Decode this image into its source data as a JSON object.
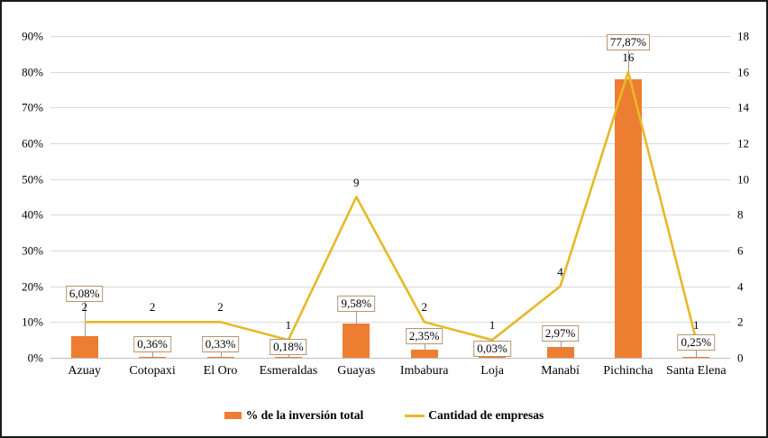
{
  "frame": {
    "background": "#ffffff",
    "border_color": "#1b1b1b"
  },
  "chart_data": {
    "type": "combo",
    "categories": [
      "Azuay",
      "Cotopaxi",
      "El Oro",
      "Esmeraldas",
      "Guayas",
      "Imbabura",
      "Loja",
      "Manabí",
      "Pichincha",
      "Santa Elena"
    ],
    "series": [
      {
        "name": "% de la inversión total",
        "type": "bar",
        "axis": "left",
        "color": "#ED7D31",
        "values": [
          6.08,
          0.36,
          0.33,
          0.18,
          9.58,
          2.35,
          0.03,
          2.97,
          77.87,
          0.25
        ],
        "data_labels": [
          "6,08%",
          "0,36%",
          "0,33%",
          "0,18%",
          "9,58%",
          "2,35%",
          "0,03%",
          "2,97%",
          "77,87%",
          "0,25%"
        ]
      },
      {
        "name": "Cantidad de empresas",
        "type": "line",
        "axis": "right",
        "color": "#E6B928",
        "values": [
          2,
          2,
          2,
          1,
          9,
          2,
          1,
          4,
          16,
          1
        ],
        "data_labels": [
          "2",
          "2",
          "2",
          "1",
          "9",
          "2",
          "1",
          "4",
          "16",
          "1"
        ]
      }
    ],
    "left_axis": {
      "min": 0,
      "max": 90,
      "tick_labels": [
        "0%",
        "10%",
        "20%",
        "30%",
        "40%",
        "50%",
        "60%",
        "70%",
        "80%",
        "90%"
      ]
    },
    "right_axis": {
      "min": 0,
      "max": 18,
      "tick_labels": [
        "0",
        "2",
        "4",
        "6",
        "8",
        "10",
        "12",
        "14",
        "16",
        "18"
      ]
    },
    "grid": true,
    "legend_position": "bottom",
    "gridline_color": "#D9D9D9",
    "label_box": {
      "fill": "#ffffff",
      "border_color": "#B49670",
      "leader_color": "#9b9b9b"
    },
    "layout_hints": {
      "pct_label_y": [
        324,
        380,
        380,
        383,
        335,
        371,
        385,
        368,
        45,
        378
      ],
      "count_label_offset": -16
    }
  }
}
